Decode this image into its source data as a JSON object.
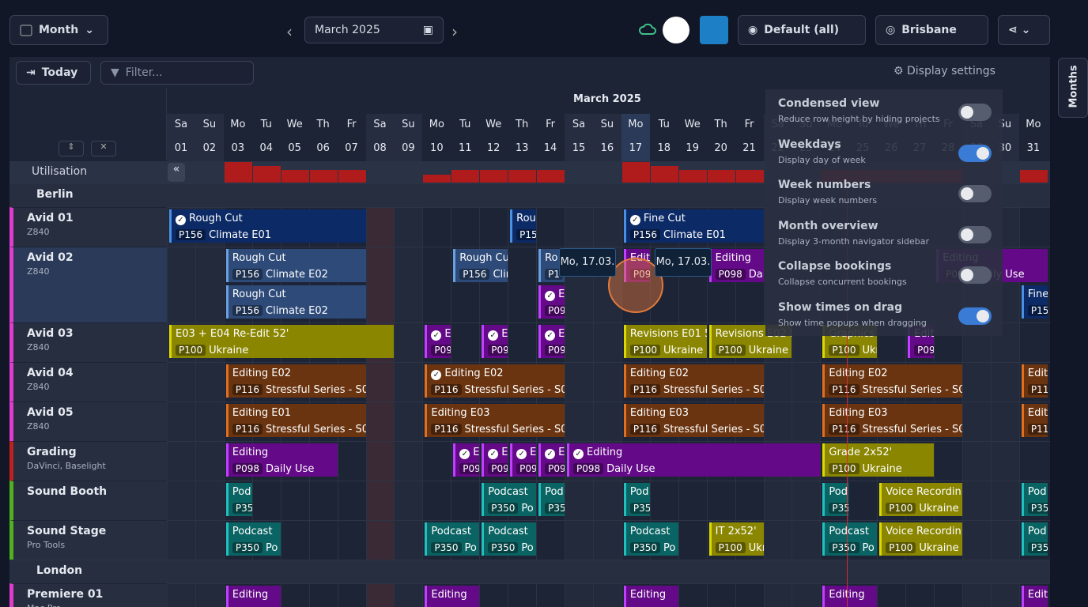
{
  "topbar": {
    "view": "Month",
    "date": "March 2025",
    "view_filter": "Default (all)",
    "timezone": "Brisbane"
  },
  "toolbar": {
    "today": "Today",
    "filter": "Filter...",
    "display_settings": "Display settings"
  },
  "side_tab": "Months",
  "calendar": {
    "month": "March 2025",
    "weekdays": [
      "Sa",
      "Su",
      "Mo",
      "Tu",
      "We",
      "Th",
      "Fr",
      "Sa",
      "Su",
      "Mo",
      "Tu",
      "We",
      "Th",
      "Fr",
      "Sa",
      "Su",
      "Mo",
      "Tu",
      "We",
      "Th",
      "Fr",
      "Sa",
      "Su",
      "Mo",
      "Tu",
      "We",
      "Th",
      "Fr",
      "Sa",
      "Su",
      "Mo"
    ],
    "days": [
      "01",
      "02",
      "03",
      "04",
      "05",
      "06",
      "07",
      "08",
      "09",
      "10",
      "11",
      "12",
      "13",
      "14",
      "15",
      "16",
      "17",
      "18",
      "19",
      "20",
      "21",
      "22",
      "23",
      "24",
      "25",
      "26",
      "27",
      "28",
      "29",
      "30",
      "31"
    ],
    "utilisation_label": "Utilisation",
    "utilisation": [
      0,
      0,
      100,
      80,
      60,
      60,
      60,
      0,
      0,
      40,
      60,
      60,
      60,
      60,
      0,
      0,
      100,
      80,
      60,
      60,
      60,
      0,
      0,
      60,
      60,
      60,
      60,
      60,
      0,
      0,
      60
    ]
  },
  "groups": [
    {
      "name": "Berlin",
      "rows": [
        {
          "name": "Avid 01",
          "sub": "Z840"
        },
        {
          "name": "Avid 02",
          "sub": "Z840"
        },
        {
          "name": "Avid 03",
          "sub": "Z840"
        },
        {
          "name": "Avid 04",
          "sub": "Z840"
        },
        {
          "name": "Avid 05",
          "sub": "Z840"
        },
        {
          "name": "Grading",
          "sub": "DaVinci, Baselight"
        },
        {
          "name": "Sound Booth"
        },
        {
          "name": "Sound Stage",
          "sub": "Pro Tools"
        }
      ]
    },
    {
      "name": "London",
      "rows": [
        {
          "name": "Premiere 01",
          "sub": "Mac Pro"
        }
      ]
    }
  ],
  "bookings": [
    {
      "title": "Rough Cut",
      "code": "P156",
      "project": "Climate E01",
      "done": true
    },
    {
      "title": "Rou",
      "code": "P15"
    },
    {
      "title": "Fine Cut",
      "code": "P156",
      "project": "Climate E01",
      "done": true
    },
    {
      "title": "Rough Cut",
      "code": "P156",
      "project": "Climate E02"
    },
    {
      "title": "Rough Cut",
      "code": "P156",
      "project": "Climate E02"
    },
    {
      "title": "Rough Cu",
      "code": "P156",
      "project": "Clin"
    },
    {
      "title": "Ro",
      "code": "P1"
    },
    {
      "title": "Editing",
      "code": "P098",
      "project": "D"
    },
    {
      "title": "Editing",
      "code": "P098",
      "project": "Dai"
    },
    {
      "title": "Editing",
      "code": "P098",
      "project": "Daily Use"
    },
    {
      "title": "E",
      "code": "P09",
      "done": true
    },
    {
      "title": "Fine",
      "code": "P15"
    },
    {
      "title": "E03 + E04 Re-Edit 52'",
      "code": "P100",
      "project": "Ukraine"
    },
    {
      "title": "E",
      "code": "P09",
      "done": true
    },
    {
      "title": "E",
      "code": "P09",
      "done": true
    },
    {
      "title": "E",
      "code": "P09",
      "done": true
    },
    {
      "title": "Revisions E01 5",
      "code": "P100",
      "project": "Ukraine"
    },
    {
      "title": "Revisions E02 E",
      "code": "P100",
      "project": "Ukraine"
    },
    {
      "title": "Graphics",
      "code": "P100",
      "project": "Ukr"
    },
    {
      "title": "Edit",
      "code": "P09"
    },
    {
      "title": "Editing E02",
      "code": "P116",
      "project": "Stressful Series - S05"
    },
    {
      "title": "Editing E02",
      "code": "P116",
      "project": "Stressful Series - S05",
      "done": true
    },
    {
      "title": "Editing E02",
      "code": "P116",
      "project": "Stressful Series - S05"
    },
    {
      "title": "Editing E02",
      "code": "P116",
      "project": "Stressful Series - S05"
    },
    {
      "title": "Edit",
      "code": "P116"
    },
    {
      "title": "Editing E01",
      "code": "P116",
      "project": "Stressful Series - S05"
    },
    {
      "title": "Editing E03",
      "code": "P116",
      "project": "Stressful Series - S05"
    },
    {
      "title": "Editing E03",
      "code": "P116",
      "project": "Stressful Series - S05"
    },
    {
      "title": "Editing E03",
      "code": "P116",
      "project": "Stressful Series - S05"
    },
    {
      "title": "Edit",
      "code": "P116"
    },
    {
      "title": "Editing",
      "code": "P098",
      "project": "Daily Use"
    },
    {
      "title": "E",
      "code": "P09",
      "done": true
    },
    {
      "title": "E",
      "code": "P09",
      "done": true
    },
    {
      "title": "E",
      "code": "P09",
      "done": true
    },
    {
      "title": "E",
      "code": "P09",
      "done": true
    },
    {
      "title": "Editing",
      "code": "P098",
      "project": "Daily Use",
      "done": true
    },
    {
      "title": "Grade 2x52'",
      "code": "P100",
      "project": "Ukraine"
    },
    {
      "title": "Pod",
      "code": "P35"
    },
    {
      "title": "Podcast",
      "code": "P350",
      "project": "Po"
    },
    {
      "title": "Pod",
      "code": "P35"
    },
    {
      "title": "Pod",
      "code": "P35"
    },
    {
      "title": "Pod",
      "code": "P35"
    },
    {
      "title": "Voice Recordin",
      "code": "P100",
      "project": "Ukraine"
    },
    {
      "title": "Pod",
      "code": "P35"
    },
    {
      "title": "Podcast",
      "code": "P350",
      "project": "Po"
    },
    {
      "title": "Podcast",
      "code": "P350",
      "project": "Po"
    },
    {
      "title": "Podcast",
      "code": "P350",
      "project": "Po"
    },
    {
      "title": "Podcast",
      "code": "P350",
      "project": "Po"
    },
    {
      "title": "IT 2x52'",
      "code": "P100",
      "project": "Ukr"
    },
    {
      "title": "Podcast",
      "code": "P350",
      "project": "Po"
    },
    {
      "title": "Voice Recordin",
      "code": "P100",
      "project": "Ukraine"
    },
    {
      "title": "Pod",
      "code": "P35"
    },
    {
      "title": "Editing"
    },
    {
      "title": "Editing"
    },
    {
      "title": "Editing"
    },
    {
      "title": "Editing"
    },
    {
      "title": "Edit"
    }
  ],
  "drag_tooltips": [
    "Mo, 17.03.",
    "Mo, 17.03."
  ],
  "settings": [
    {
      "title": "Condensed view",
      "desc": "Reduce row height by hiding projects",
      "on": false
    },
    {
      "title": "Weekdays",
      "desc": "Display day of week",
      "on": true
    },
    {
      "title": "Week numbers",
      "desc": "Display week numbers",
      "on": false
    },
    {
      "title": "Month overview",
      "desc": "Display 3-month navigator sidebar",
      "on": false
    },
    {
      "title": "Collapse bookings",
      "desc": "Collapse concurrent bookings",
      "on": false
    },
    {
      "title": "Show times on drag",
      "desc": "Show time popups when dragging",
      "on": true
    }
  ]
}
